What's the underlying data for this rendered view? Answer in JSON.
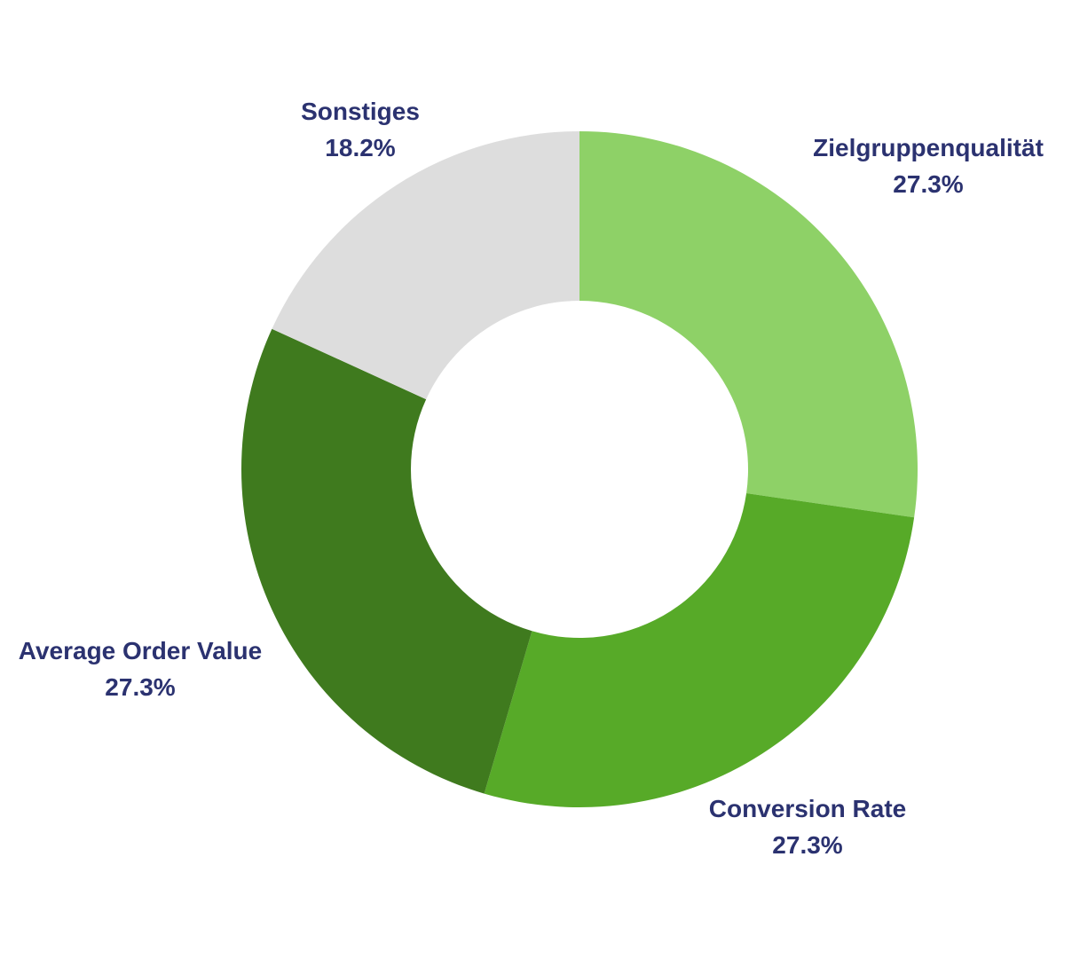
{
  "chart_data": {
    "type": "pie",
    "variant": "donut",
    "slices": [
      {
        "label": "Zielgruppenqualität",
        "value": 27.3,
        "value_label": "27.3%",
        "color": "#8ed167"
      },
      {
        "label": "Conversion Rate",
        "value": 27.3,
        "value_label": "27.3%",
        "color": "#57aa28"
      },
      {
        "label": "Average Order Value",
        "value": 27.3,
        "value_label": "27.3%",
        "color": "#3f7a1e"
      },
      {
        "label": "Sonstiges",
        "value": 18.2,
        "value_label": "18.2%",
        "color": "#dddddd"
      }
    ],
    "start_angle": "12 o'clock",
    "direction": "clockwise",
    "label_color": "#2b3270",
    "legend": "none"
  }
}
